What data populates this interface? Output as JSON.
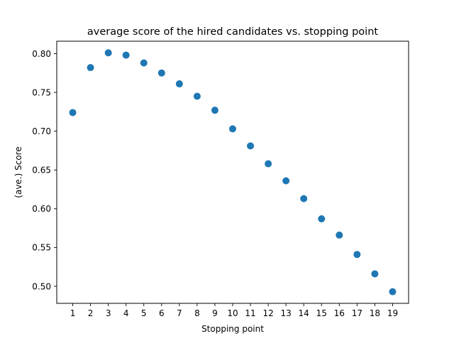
{
  "chart_data": {
    "type": "scatter",
    "title": "average score of the hired candidates vs. stopping point",
    "xlabel": "Stopping point",
    "ylabel": "(ave.) Score",
    "xlim": [
      0.1,
      19.9
    ],
    "ylim": [
      0.478,
      0.816
    ],
    "xticks": [
      1,
      2,
      3,
      4,
      5,
      6,
      7,
      8,
      9,
      10,
      11,
      12,
      13,
      14,
      15,
      16,
      17,
      18,
      19
    ],
    "yticks": [
      0.5,
      0.55,
      0.6,
      0.65,
      0.7,
      0.75,
      0.8
    ],
    "ytick_labels": [
      "0.50",
      "0.55",
      "0.60",
      "0.65",
      "0.70",
      "0.75",
      "0.80"
    ],
    "grid": false,
    "marker_color": "#1f77b4",
    "x": [
      1,
      2,
      3,
      4,
      5,
      6,
      7,
      8,
      9,
      10,
      11,
      12,
      13,
      14,
      15,
      16,
      17,
      18,
      19
    ],
    "y": [
      0.724,
      0.782,
      0.801,
      0.798,
      0.788,
      0.775,
      0.761,
      0.745,
      0.727,
      0.703,
      0.681,
      0.658,
      0.636,
      0.613,
      0.587,
      0.566,
      0.541,
      0.516,
      0.493
    ]
  }
}
